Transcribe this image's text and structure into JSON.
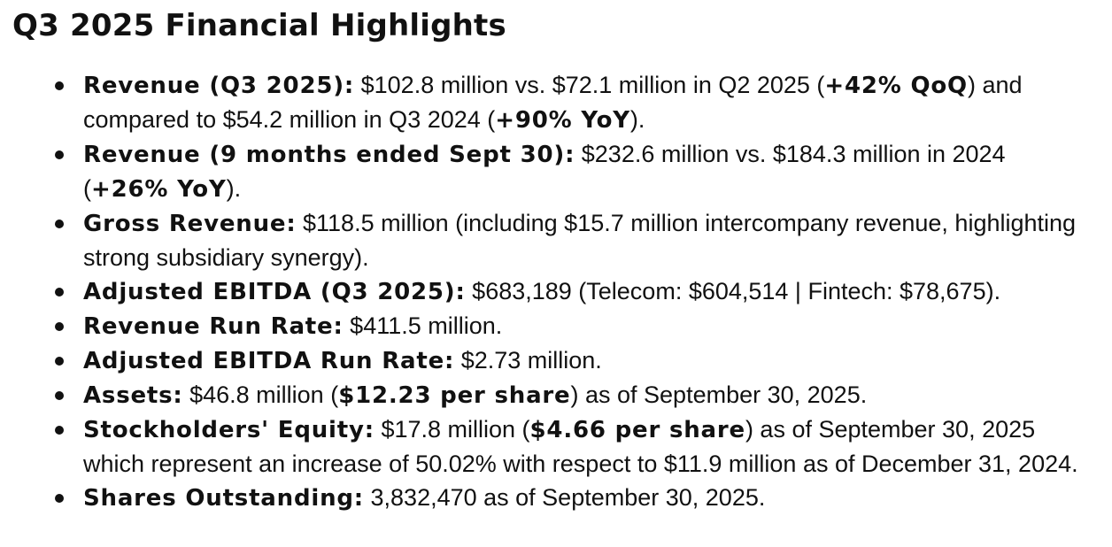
{
  "title": "Q3 2025 Financial Highlights",
  "items": [
    {
      "label": "Revenue (Q3 2025):",
      "t1": " $102.8 million vs. $72.1 million in Q2 2025 (",
      "b1": "+42% QoQ",
      "t2": ") and compared to $54.2 million in Q3 2024 (",
      "b2": "+90% YoY",
      "t3": ")."
    },
    {
      "label": "Revenue (9 months ended Sept 30):",
      "t1": " $232.6 million vs. $184.3 million in 2024 (",
      "b1": "+26% YoY",
      "t2": ")."
    },
    {
      "label": "Gross Revenue:",
      "t1": " $118.5 million (including $15.7 million intercompany revenue, highlighting strong subsidiary synergy)."
    },
    {
      "label": "Adjusted EBITDA (Q3 2025):",
      "t1": " $683,189 (Telecom: $604,514 | Fintech: $78,675)."
    },
    {
      "label": "Revenue Run Rate:",
      "t1": " $411.5 million."
    },
    {
      "label": "Adjusted EBITDA Run Rate:",
      "t1": " $2.73 million."
    },
    {
      "label": "Assets:",
      "t1": " $46.8 million (",
      "b1": "$12.23 per share",
      "t2": ") as of September 30, 2025."
    },
    {
      "label": "Stockholders' Equity:",
      "t1": " $17.8 million (",
      "b1": "$4.66 per share",
      "t2": ") as of September 30, 2025 which represent an increase of 50.02% with respect to $11.9 million as of December 31, 2024."
    },
    {
      "label": "Shares Outstanding:",
      "t1": " 3,832,470 as of September 30, 2025."
    }
  ]
}
